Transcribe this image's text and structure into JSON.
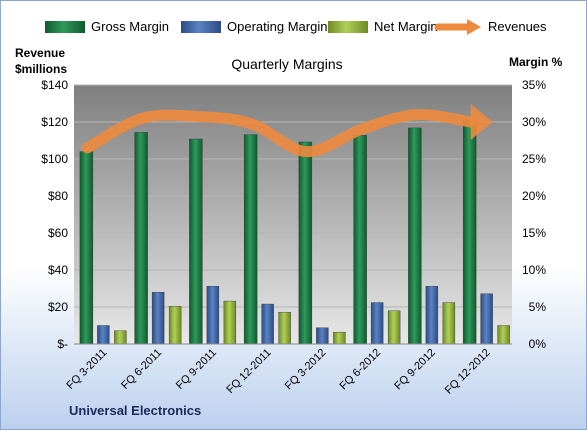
{
  "chart_data": {
    "type": "bar",
    "title": "Quarterly Margins",
    "subtitle": "",
    "left_axis_label_line1": "Revenue",
    "left_axis_label_line2": "$millions",
    "right_axis_label": "Margin %",
    "footer": "Universal Electronics",
    "categories": [
      "FQ 3-2011",
      "FQ 6-2011",
      "FQ 9-2011",
      "FQ 12-2011",
      "FQ 3-2012",
      "FQ 6-2012",
      "FQ 9-2012",
      "FQ 12-2012"
    ],
    "y_left": {
      "min": 0,
      "max": 140,
      "ticks": [
        "$-",
        "$20",
        "$40",
        "$60",
        "$80",
        "$100",
        "$120",
        "$140"
      ]
    },
    "y_right": {
      "min": 0,
      "max": 35,
      "ticks": [
        "0%",
        "5%",
        "10%",
        "15%",
        "20%",
        "25%",
        "30%",
        "35%"
      ]
    },
    "grid": true,
    "legend_position": "top",
    "series": [
      {
        "name": "Gross Margin",
        "axis": "right",
        "color": "#1e7c45",
        "values": [
          26.0,
          28.6,
          27.7,
          28.3,
          27.3,
          28.2,
          29.2,
          30.3
        ]
      },
      {
        "name": "Operating Margin",
        "axis": "right",
        "color": "#3f65a8",
        "values": [
          2.5,
          7.0,
          7.8,
          5.4,
          2.2,
          5.6,
          7.8,
          6.8
        ]
      },
      {
        "name": "Net Margin",
        "axis": "right",
        "color": "#8fae3a",
        "values": [
          1.8,
          5.1,
          5.8,
          4.3,
          1.6,
          4.5,
          5.6,
          2.5
        ]
      },
      {
        "name": "Revenues",
        "axis": "left",
        "type": "line",
        "color": "#ed8a3d",
        "values": [
          106,
          122,
          123,
          119,
          104,
          116,
          124,
          120
        ]
      }
    ]
  }
}
